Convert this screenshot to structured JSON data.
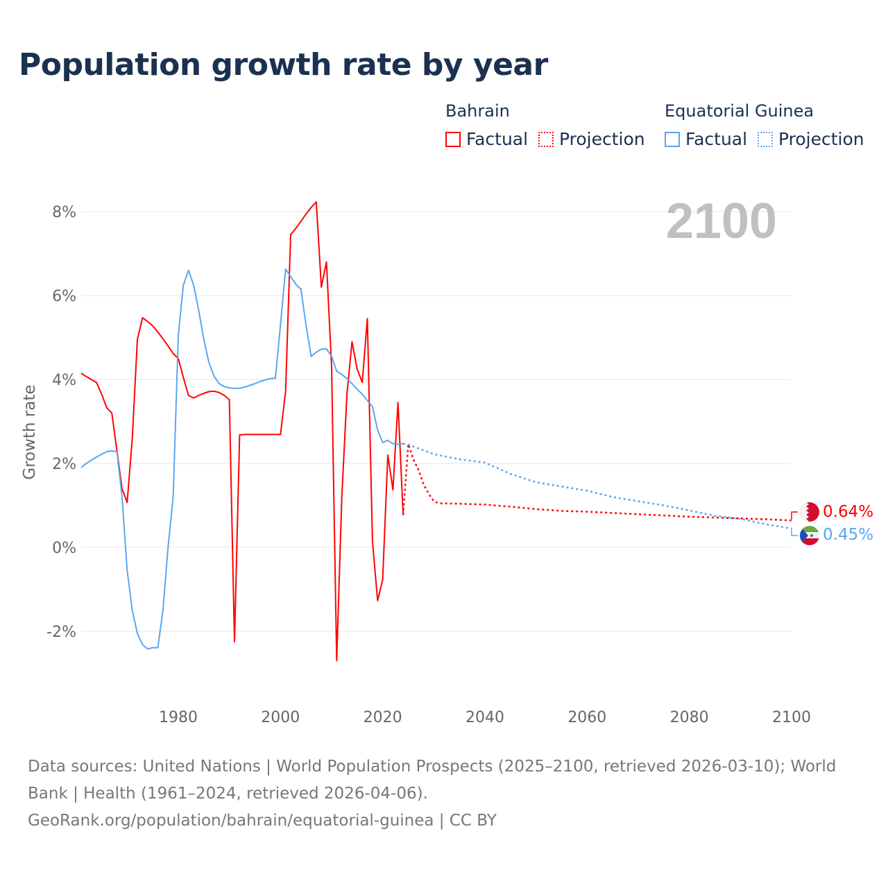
{
  "title": "Population growth rate by year",
  "legend": {
    "groups": [
      {
        "name": "Bahrain",
        "factual": "Factual",
        "projection": "Projection",
        "color": "#ff0000"
      },
      {
        "name": "Equatorial Guinea",
        "factual": "Factual",
        "projection": "Projection",
        "color": "#5aa5ee"
      }
    ]
  },
  "year_badge": "2100",
  "end_labels": {
    "bahrain": "0.64%",
    "equatorial_guinea": "0.45%"
  },
  "footer": {
    "sources": "Data sources: United Nations | World Population Prospects (2025–2100, retrieved 2026-03-10); World Bank | Health (1961–2024, retrieved 2026-04-06).",
    "credit": "GeoRank.org/population/bahrain/equatorial-guinea | CC BY"
  },
  "chart_data": {
    "type": "line",
    "title": "Population growth rate by year",
    "xlabel": "",
    "ylabel": "Growth rate",
    "xlim": [
      1961,
      2100
    ],
    "ylim": [
      -3.3,
      8.5
    ],
    "xticks": [
      1980,
      2000,
      2020,
      2040,
      2060,
      2080,
      2100
    ],
    "xtick_labels": [
      "1980",
      "2000",
      "2020",
      "2040",
      "2060",
      "2080",
      "2100"
    ],
    "yticks": [
      -2,
      0,
      2,
      4,
      6,
      8
    ],
    "ytick_labels": [
      "-2%",
      "0%",
      "2%",
      "4%",
      "6%",
      "8%"
    ],
    "grid": true,
    "legend_position": "top-right",
    "series": [
      {
        "name": "Bahrain Factual",
        "color": "#ff0000",
        "style": "solid",
        "x": [
          1961,
          1962,
          1963,
          1964,
          1965,
          1966,
          1967,
          1968,
          1969,
          1970,
          1971,
          1972,
          1973,
          1974,
          1975,
          1976,
          1977,
          1978,
          1979,
          1980,
          1981,
          1982,
          1983,
          1984,
          1985,
          1986,
          1987,
          1988,
          1989,
          1990,
          1991,
          1992,
          1993,
          1994,
          1995,
          1996,
          1997,
          1998,
          1999,
          2000,
          2001,
          2002,
          2003,
          2004,
          2005,
          2006,
          2007,
          2008,
          2009,
          2010,
          2011,
          2012,
          2013,
          2014,
          2015,
          2016,
          2017,
          2018,
          2019,
          2020,
          2021,
          2022,
          2023,
          2024
        ],
        "y": [
          4.15,
          4.07,
          4.0,
          3.93,
          3.65,
          3.33,
          3.2,
          2.3,
          1.4,
          1.07,
          2.6,
          4.95,
          5.47,
          5.38,
          5.28,
          5.13,
          4.97,
          4.8,
          4.62,
          4.5,
          4.05,
          3.62,
          3.56,
          3.62,
          3.67,
          3.71,
          3.72,
          3.69,
          3.62,
          3.52,
          -2.25,
          2.68,
          2.69,
          2.69,
          2.69,
          2.69,
          2.69,
          2.69,
          2.69,
          2.69,
          3.72,
          7.45,
          7.6,
          7.77,
          7.94,
          8.1,
          8.23,
          6.2,
          6.8,
          4.3,
          -2.7,
          1.2,
          3.65,
          4.9,
          4.25,
          3.93,
          5.45,
          0.15,
          -1.27,
          -0.77,
          2.2,
          1.37,
          3.45,
          0.77
        ]
      },
      {
        "name": "Bahrain Projection",
        "color": "#ff0000",
        "style": "dotted",
        "x": [
          2024,
          2025,
          2026,
          2027,
          2028,
          2029,
          2030,
          2031,
          2035,
          2040,
          2045,
          2050,
          2055,
          2060,
          2065,
          2070,
          2075,
          2080,
          2085,
          2090,
          2095,
          2100
        ],
        "y": [
          0.77,
          2.46,
          2.1,
          1.85,
          1.5,
          1.28,
          1.1,
          1.05,
          1.04,
          1.02,
          0.97,
          0.91,
          0.87,
          0.85,
          0.82,
          0.79,
          0.76,
          0.73,
          0.71,
          0.69,
          0.67,
          0.64
        ]
      },
      {
        "name": "Equatorial Guinea Factual",
        "color": "#5aa5ee",
        "style": "solid",
        "x": [
          1961,
          1962,
          1963,
          1964,
          1965,
          1966,
          1967,
          1968,
          1969,
          1970,
          1971,
          1972,
          1973,
          1974,
          1975,
          1976,
          1977,
          1978,
          1979,
          1980,
          1981,
          1982,
          1983,
          1984,
          1985,
          1986,
          1987,
          1988,
          1989,
          1990,
          1991,
          1992,
          1993,
          1994,
          1995,
          1996,
          1997,
          1998,
          1999,
          2000,
          2001,
          2002,
          2003,
          2004,
          2005,
          2006,
          2007,
          2008,
          2009,
          2010,
          2011,
          2012,
          2013,
          2014,
          2015,
          2016,
          2017,
          2018,
          2019,
          2020,
          2021,
          2022,
          2023,
          2024
        ],
        "y": [
          1.9,
          2.0,
          2.08,
          2.15,
          2.22,
          2.28,
          2.3,
          2.28,
          1.2,
          -0.55,
          -1.5,
          -2.05,
          -2.32,
          -2.42,
          -2.39,
          -2.39,
          -1.5,
          0.0,
          1.2,
          5.05,
          6.25,
          6.6,
          6.25,
          5.65,
          4.95,
          4.4,
          4.08,
          3.9,
          3.83,
          3.8,
          3.79,
          3.79,
          3.82,
          3.86,
          3.9,
          3.95,
          3.99,
          4.02,
          4.03,
          5.3,
          6.63,
          6.45,
          6.27,
          6.15,
          5.3,
          4.55,
          4.65,
          4.72,
          4.73,
          4.55,
          4.2,
          4.12,
          4.02,
          3.9,
          3.77,
          3.65,
          3.5,
          3.35,
          2.8,
          2.5,
          2.55,
          2.47,
          2.46,
          2.47
        ]
      },
      {
        "name": "Equatorial Guinea Projection",
        "color": "#5aa5ee",
        "style": "dotted",
        "x": [
          2024,
          2025,
          2030,
          2035,
          2040,
          2045,
          2050,
          2055,
          2060,
          2065,
          2070,
          2075,
          2080,
          2085,
          2090,
          2095,
          2100
        ],
        "y": [
          2.47,
          2.45,
          2.22,
          2.1,
          2.02,
          1.75,
          1.55,
          1.45,
          1.35,
          1.2,
          1.1,
          1.0,
          0.88,
          0.75,
          0.68,
          0.55,
          0.45
        ]
      }
    ]
  }
}
